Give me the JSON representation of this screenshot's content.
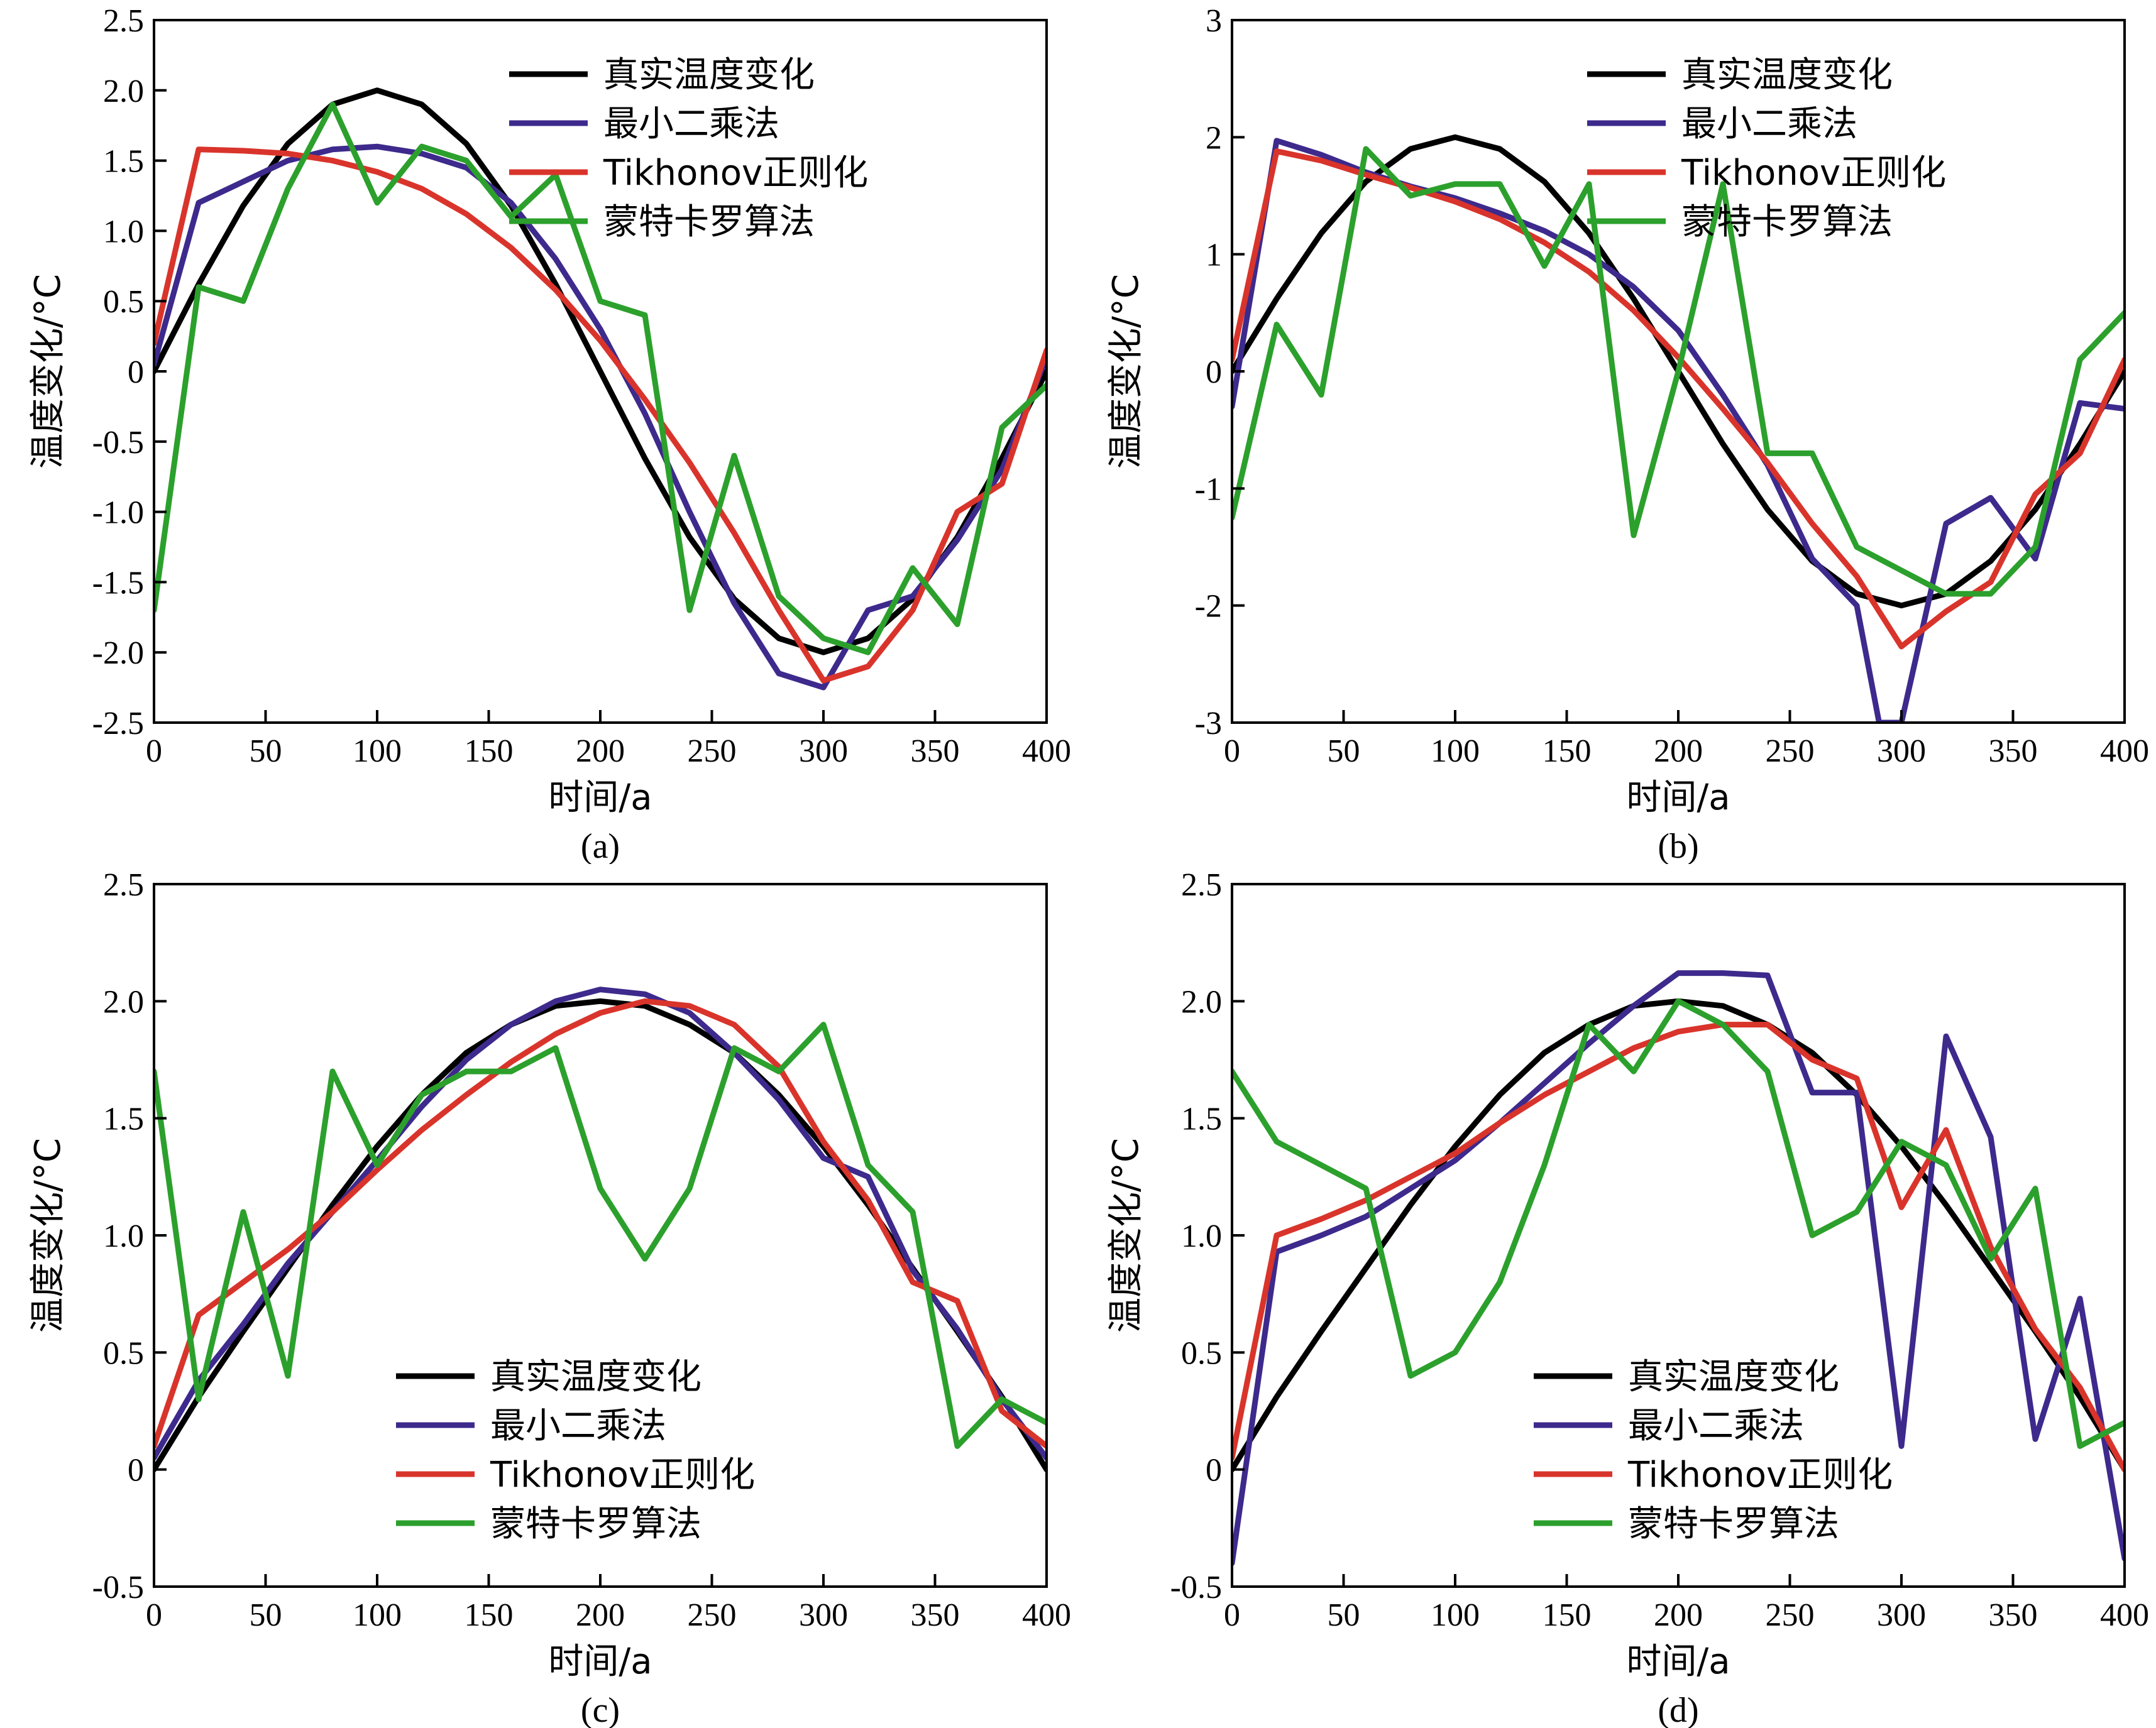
{
  "colors": {
    "true": "#000000",
    "least_squares": "#3d2a8c",
    "tikhonov": "#d9342b",
    "monte_carlo": "#2ca02c"
  },
  "chart_data": [
    {
      "type": "line",
      "panel_label": "(a)",
      "xlabel": "时间/a",
      "ylabel": "温度变化/°C",
      "xlim": [
        0,
        400
      ],
      "ylim": [
        -2.5,
        2.5
      ],
      "xticks": [
        0,
        50,
        100,
        150,
        200,
        250,
        300,
        350,
        400
      ],
      "yticks": [
        -2.5,
        -2.0,
        -1.5,
        -1.0,
        -0.5,
        0,
        0.5,
        1.0,
        1.5,
        2.0,
        2.5
      ],
      "ytick_labels": [
        "-2.5",
        "-2.0",
        "-1.5",
        "-1.0",
        "-0.5",
        "0",
        "0.5",
        "1.0",
        "1.5",
        "2.0",
        "2.5"
      ],
      "legend_position": "top-right",
      "series": [
        {
          "name": "真实温度变化",
          "color_key": "true",
          "x": [
            0,
            20,
            40,
            60,
            80,
            100,
            120,
            140,
            160,
            180,
            200,
            220,
            240,
            260,
            280,
            300,
            320,
            340,
            360,
            380,
            400
          ],
          "y": [
            0,
            0.62,
            1.18,
            1.62,
            1.9,
            2.0,
            1.9,
            1.62,
            1.18,
            0.62,
            0,
            -0.62,
            -1.18,
            -1.62,
            -1.9,
            -2.0,
            -1.9,
            -1.62,
            -1.18,
            -0.62,
            0
          ]
        },
        {
          "name": "最小二乘法",
          "color_key": "least_squares",
          "x": [
            0,
            20,
            40,
            60,
            80,
            100,
            120,
            140,
            160,
            180,
            200,
            220,
            240,
            260,
            280,
            300,
            320,
            340,
            360,
            380,
            400
          ],
          "y": [
            0.05,
            1.2,
            1.35,
            1.5,
            1.58,
            1.6,
            1.55,
            1.45,
            1.2,
            0.8,
            0.3,
            -0.3,
            -1.0,
            -1.65,
            -2.15,
            -2.25,
            -1.7,
            -1.6,
            -1.2,
            -0.7,
            0.1
          ]
        },
        {
          "name": "Tikhonov正则化",
          "color_key": "tikhonov",
          "x": [
            0,
            20,
            40,
            60,
            80,
            100,
            120,
            140,
            160,
            180,
            200,
            220,
            240,
            260,
            280,
            300,
            320,
            340,
            360,
            380,
            400
          ],
          "y": [
            0.2,
            1.58,
            1.57,
            1.55,
            1.5,
            1.42,
            1.3,
            1.12,
            0.88,
            0.58,
            0.22,
            -0.2,
            -0.65,
            -1.15,
            -1.7,
            -2.2,
            -2.1,
            -1.7,
            -1.0,
            -0.8,
            0.15
          ]
        },
        {
          "name": "蒙特卡罗算法",
          "color_key": "monte_carlo",
          "x": [
            0,
            20,
            40,
            60,
            80,
            100,
            120,
            140,
            160,
            180,
            200,
            220,
            240,
            260,
            280,
            300,
            320,
            340,
            360,
            380,
            400
          ],
          "y": [
            -1.7,
            0.6,
            0.5,
            1.3,
            1.9,
            1.2,
            1.6,
            1.5,
            1.1,
            1.4,
            0.5,
            0.4,
            -1.7,
            -0.6,
            -1.6,
            -1.9,
            -2.0,
            -1.4,
            -1.8,
            -0.4,
            -0.1
          ]
        }
      ]
    },
    {
      "type": "line",
      "panel_label": "(b)",
      "xlabel": "时间/a",
      "ylabel": "温度变化/°C",
      "xlim": [
        0,
        400
      ],
      "ylim": [
        -3,
        3
      ],
      "xticks": [
        0,
        50,
        100,
        150,
        200,
        250,
        300,
        350,
        400
      ],
      "yticks": [
        -3,
        -2,
        -1,
        0,
        1,
        2,
        3
      ],
      "ytick_labels": [
        "-3",
        "-2",
        "-1",
        "0",
        "1",
        "2",
        "3"
      ],
      "legend_position": "top-right",
      "series": [
        {
          "name": "真实温度变化",
          "color_key": "true",
          "x": [
            0,
            20,
            40,
            60,
            80,
            100,
            120,
            140,
            160,
            180,
            200,
            220,
            240,
            260,
            280,
            300,
            320,
            340,
            360,
            380,
            400
          ],
          "y": [
            0,
            0.62,
            1.18,
            1.62,
            1.9,
            2.0,
            1.9,
            1.62,
            1.18,
            0.62,
            0,
            -0.62,
            -1.18,
            -1.62,
            -1.9,
            -2.0,
            -1.9,
            -1.62,
            -1.18,
            -0.62,
            0
          ]
        },
        {
          "name": "最小二乘法",
          "color_key": "least_squares",
          "x": [
            0,
            20,
            40,
            60,
            80,
            100,
            120,
            140,
            160,
            180,
            200,
            220,
            240,
            260,
            280,
            290,
            300,
            320,
            340,
            360,
            380,
            400
          ],
          "y": [
            -0.3,
            1.97,
            1.85,
            1.7,
            1.58,
            1.48,
            1.35,
            1.2,
            1.0,
            0.72,
            0.35,
            -0.2,
            -0.8,
            -1.6,
            -2.0,
            -3.0,
            -3.0,
            -1.3,
            -1.08,
            -1.6,
            -0.27,
            -0.32
          ]
        },
        {
          "name": "Tikhonov正则化",
          "color_key": "tikhonov",
          "x": [
            0,
            20,
            40,
            60,
            80,
            100,
            120,
            140,
            160,
            180,
            200,
            220,
            240,
            260,
            280,
            300,
            320,
            340,
            360,
            380,
            400
          ],
          "y": [
            0.1,
            1.88,
            1.8,
            1.68,
            1.57,
            1.45,
            1.3,
            1.1,
            0.85,
            0.52,
            0.12,
            -0.32,
            -0.78,
            -1.3,
            -1.75,
            -2.35,
            -2.05,
            -1.8,
            -1.05,
            -0.7,
            0.1
          ]
        },
        {
          "name": "蒙特卡罗算法",
          "color_key": "monte_carlo",
          "x": [
            0,
            20,
            40,
            60,
            80,
            100,
            120,
            140,
            160,
            180,
            200,
            220,
            240,
            260,
            280,
            300,
            320,
            340,
            360,
            380,
            400
          ],
          "y": [
            -1.25,
            0.4,
            -0.2,
            1.9,
            1.5,
            1.6,
            1.6,
            0.9,
            1.6,
            -1.4,
            0.0,
            1.6,
            -0.7,
            -0.7,
            -1.5,
            -1.7,
            -1.9,
            -1.9,
            -1.5,
            0.1,
            0.5
          ]
        }
      ]
    },
    {
      "type": "line",
      "panel_label": "(c)",
      "xlabel": "时间/a",
      "ylabel": "温度变化/°C",
      "xlim": [
        0,
        400
      ],
      "ylim": [
        -0.5,
        2.5
      ],
      "xticks": [
        0,
        50,
        100,
        150,
        200,
        250,
        300,
        350,
        400
      ],
      "yticks": [
        -0.5,
        0,
        0.5,
        1.0,
        1.5,
        2.0,
        2.5
      ],
      "ytick_labels": [
        "-0.5",
        "0",
        "0.5",
        "1.0",
        "1.5",
        "2.0",
        "2.5"
      ],
      "legend_position": "bottom-center",
      "series": [
        {
          "name": "真实温度变化",
          "color_key": "true",
          "x": [
            0,
            20,
            40,
            60,
            80,
            100,
            120,
            140,
            160,
            180,
            200,
            220,
            240,
            260,
            280,
            300,
            320,
            340,
            360,
            380,
            400
          ],
          "y": [
            0,
            0.31,
            0.59,
            0.86,
            1.13,
            1.38,
            1.6,
            1.78,
            1.9,
            1.98,
            2.0,
            1.98,
            1.9,
            1.78,
            1.6,
            1.38,
            1.13,
            0.86,
            0.59,
            0.31,
            0
          ]
        },
        {
          "name": "最小二乘法",
          "color_key": "least_squares",
          "x": [
            0,
            20,
            40,
            60,
            80,
            100,
            120,
            140,
            160,
            180,
            200,
            220,
            240,
            260,
            280,
            300,
            320,
            340,
            360,
            380,
            400
          ],
          "y": [
            0.05,
            0.38,
            0.62,
            0.88,
            1.1,
            1.32,
            1.55,
            1.75,
            1.9,
            2.0,
            2.05,
            2.03,
            1.95,
            1.78,
            1.58,
            1.33,
            1.25,
            0.85,
            0.6,
            0.3,
            0.05
          ]
        },
        {
          "name": "Tikhonov正则化",
          "color_key": "tikhonov",
          "x": [
            0,
            20,
            40,
            60,
            80,
            100,
            120,
            140,
            160,
            180,
            200,
            220,
            240,
            260,
            280,
            300,
            320,
            340,
            360,
            380,
            400
          ],
          "y": [
            0.1,
            0.66,
            0.8,
            0.94,
            1.1,
            1.28,
            1.45,
            1.6,
            1.74,
            1.86,
            1.95,
            2.0,
            1.98,
            1.9,
            1.72,
            1.4,
            1.15,
            0.8,
            0.72,
            0.25,
            0.1
          ]
        },
        {
          "name": "蒙特卡罗算法",
          "color_key": "monte_carlo",
          "x": [
            0,
            20,
            40,
            60,
            80,
            100,
            120,
            140,
            160,
            180,
            200,
            220,
            240,
            260,
            280,
            300,
            320,
            340,
            360,
            380,
            400
          ],
          "y": [
            1.7,
            0.3,
            1.1,
            0.4,
            1.7,
            1.3,
            1.6,
            1.7,
            1.7,
            1.8,
            1.2,
            0.9,
            1.2,
            1.8,
            1.7,
            1.9,
            1.3,
            1.1,
            0.1,
            0.3,
            0.2
          ]
        }
      ]
    },
    {
      "type": "line",
      "panel_label": "(d)",
      "xlabel": "时间/a",
      "ylabel": "温度变化/°C",
      "xlim": [
        0,
        400
      ],
      "ylim": [
        -0.5,
        2.5
      ],
      "xticks": [
        0,
        50,
        100,
        150,
        200,
        250,
        300,
        350,
        400
      ],
      "yticks": [
        -0.5,
        0,
        0.5,
        1.0,
        1.5,
        2.0,
        2.5
      ],
      "ytick_labels": [
        "-0.5",
        "0",
        "0.5",
        "1.0",
        "1.5",
        "2.0",
        "2.5"
      ],
      "legend_position": "bottom-right",
      "series": [
        {
          "name": "真实温度变化",
          "color_key": "true",
          "x": [
            0,
            20,
            40,
            60,
            80,
            100,
            120,
            140,
            160,
            180,
            200,
            220,
            240,
            260,
            280,
            300,
            320,
            340,
            360,
            380,
            400
          ],
          "y": [
            0,
            0.31,
            0.59,
            0.86,
            1.13,
            1.38,
            1.6,
            1.78,
            1.9,
            1.98,
            2.0,
            1.98,
            1.9,
            1.78,
            1.6,
            1.38,
            1.13,
            0.86,
            0.59,
            0.31,
            0
          ]
        },
        {
          "name": "最小二乘法",
          "color_key": "least_squares",
          "x": [
            0,
            20,
            40,
            60,
            80,
            100,
            120,
            140,
            160,
            180,
            200,
            220,
            240,
            260,
            280,
            300,
            320,
            340,
            360,
            380,
            400
          ],
          "y": [
            -0.4,
            0.93,
            1.0,
            1.08,
            1.2,
            1.32,
            1.48,
            1.65,
            1.82,
            1.98,
            2.12,
            2.12,
            2.11,
            1.61,
            1.61,
            0.1,
            1.85,
            1.42,
            0.13,
            0.73,
            -0.38
          ]
        },
        {
          "name": "Tikhonov正则化",
          "color_key": "tikhonov",
          "x": [
            0,
            20,
            40,
            60,
            80,
            100,
            120,
            140,
            160,
            180,
            200,
            220,
            240,
            260,
            280,
            300,
            320,
            340,
            360,
            380,
            400
          ],
          "y": [
            0.05,
            1.0,
            1.07,
            1.15,
            1.25,
            1.35,
            1.48,
            1.6,
            1.7,
            1.8,
            1.87,
            1.9,
            1.9,
            1.75,
            1.67,
            1.12,
            1.45,
            0.95,
            0.6,
            0.35,
            0.0
          ]
        },
        {
          "name": "蒙特卡罗算法",
          "color_key": "monte_carlo",
          "x": [
            0,
            20,
            40,
            60,
            80,
            100,
            120,
            140,
            160,
            180,
            200,
            220,
            240,
            260,
            280,
            300,
            320,
            340,
            360,
            380,
            400
          ],
          "y": [
            1.7,
            1.4,
            1.3,
            1.2,
            0.4,
            0.5,
            0.8,
            1.3,
            1.9,
            1.7,
            2.0,
            1.9,
            1.7,
            1.0,
            1.1,
            1.4,
            1.3,
            0.9,
            1.2,
            0.1,
            0.2
          ]
        }
      ]
    }
  ]
}
